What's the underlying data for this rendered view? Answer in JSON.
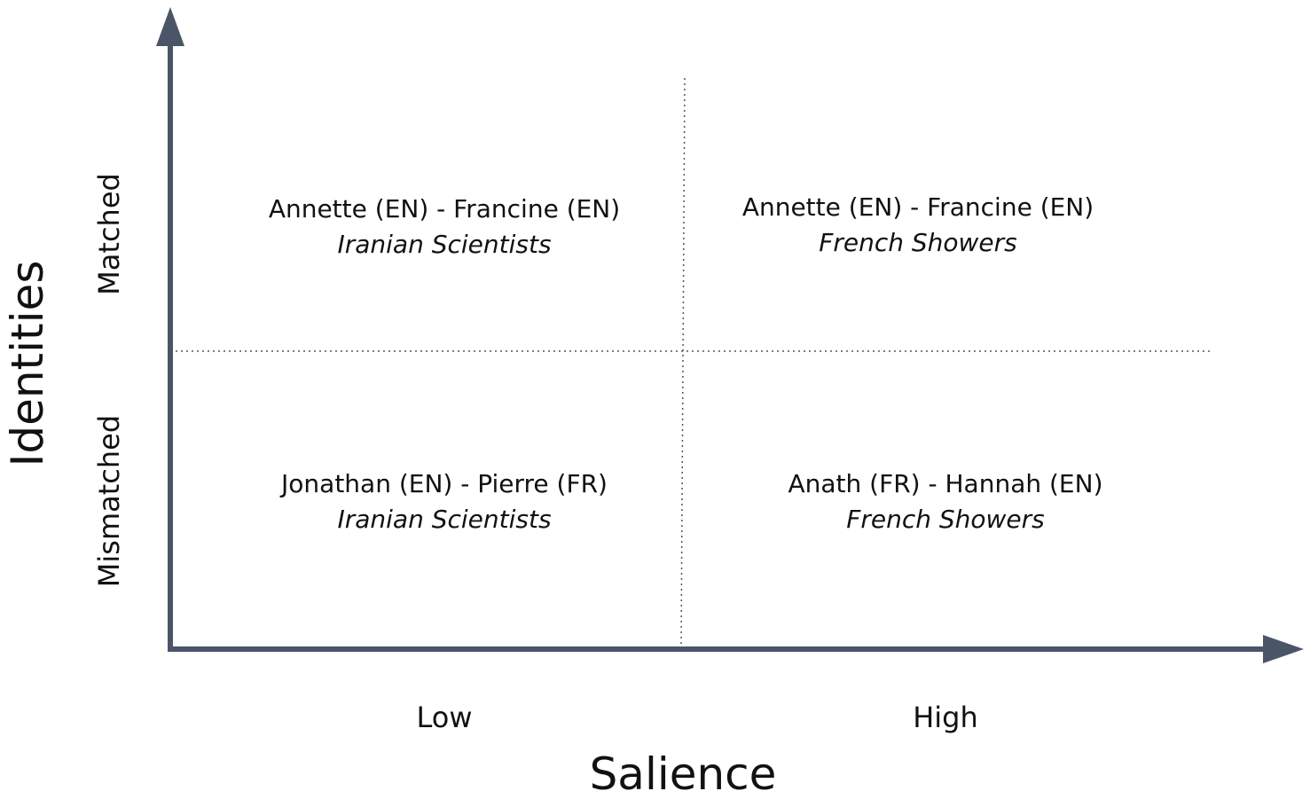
{
  "axes": {
    "x_label": "Salience",
    "y_label": "Identities",
    "x_levels": [
      "Low",
      "High"
    ],
    "y_levels": [
      "Matched",
      "Mismatched"
    ]
  },
  "cells": [
    {
      "pair": "Annette (EN) - Francine (EN)",
      "story": "Iranian Scientists"
    },
    {
      "pair": "Annette (EN) - Francine (EN)",
      "story": "French Showers"
    },
    {
      "pair": "Jonathan (EN) - Pierre (FR)",
      "story": "Iranian Scientists"
    },
    {
      "pair": "Anath (FR) - Hannah (EN)",
      "story": "French Showers"
    }
  ]
}
